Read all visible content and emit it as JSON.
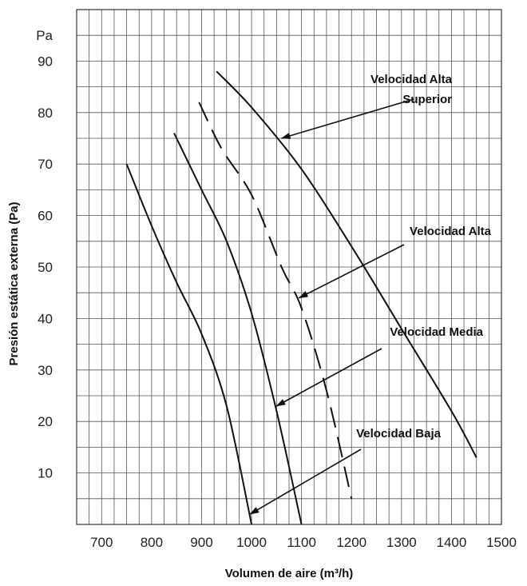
{
  "chart_data": {
    "type": "line",
    "xlabel": "Volumen de aire (m³/h)",
    "ylabel": "Presión estática externa (Pa)",
    "y_unit_label": "Pa",
    "xlim": [
      650,
      1500
    ],
    "ylim": [
      0,
      100
    ],
    "x_ticks": [
      700,
      800,
      900,
      1000,
      1100,
      1200,
      1300,
      1400,
      1500
    ],
    "y_ticks": [
      10,
      20,
      30,
      40,
      50,
      60,
      70,
      80,
      90
    ],
    "grid": true,
    "series": [
      {
        "name": "Velocidad Baja",
        "dash": false,
        "points": [
          [
            750,
            70
          ],
          [
            800,
            58
          ],
          [
            850,
            47
          ],
          [
            900,
            37
          ],
          [
            950,
            23
          ],
          [
            1000,
            0
          ]
        ]
      },
      {
        "name": "Velocidad Media",
        "dash": false,
        "points": [
          [
            845,
            76
          ],
          [
            900,
            65
          ],
          [
            950,
            55
          ],
          [
            1000,
            41
          ],
          [
            1050,
            22
          ],
          [
            1100,
            0
          ]
        ]
      },
      {
        "name": "Velocidad Alta",
        "dash": true,
        "points": [
          [
            895,
            82
          ],
          [
            940,
            73
          ],
          [
            1000,
            64
          ],
          [
            1060,
            50
          ],
          [
            1100,
            42
          ],
          [
            1150,
            26
          ],
          [
            1200,
            5
          ]
        ]
      },
      {
        "name": "Velocidad Alta Superior",
        "dash": false,
        "points": [
          [
            930,
            88
          ],
          [
            1000,
            81
          ],
          [
            1100,
            69
          ],
          [
            1200,
            54
          ],
          [
            1300,
            38
          ],
          [
            1400,
            22
          ],
          [
            1450,
            13
          ]
        ]
      }
    ],
    "annotations": [
      {
        "lines": [
          "Velocidad Alta",
          "Superior"
        ],
        "target": [
          1060,
          75
        ]
      },
      {
        "lines": [
          "Velocidad Alta"
        ],
        "target": [
          1095,
          44
        ]
      },
      {
        "lines": [
          "Velocidad Media"
        ],
        "target": [
          1050,
          23
        ]
      },
      {
        "lines": [
          "Velocidad Baja"
        ],
        "target": [
          997,
          2
        ]
      }
    ]
  }
}
